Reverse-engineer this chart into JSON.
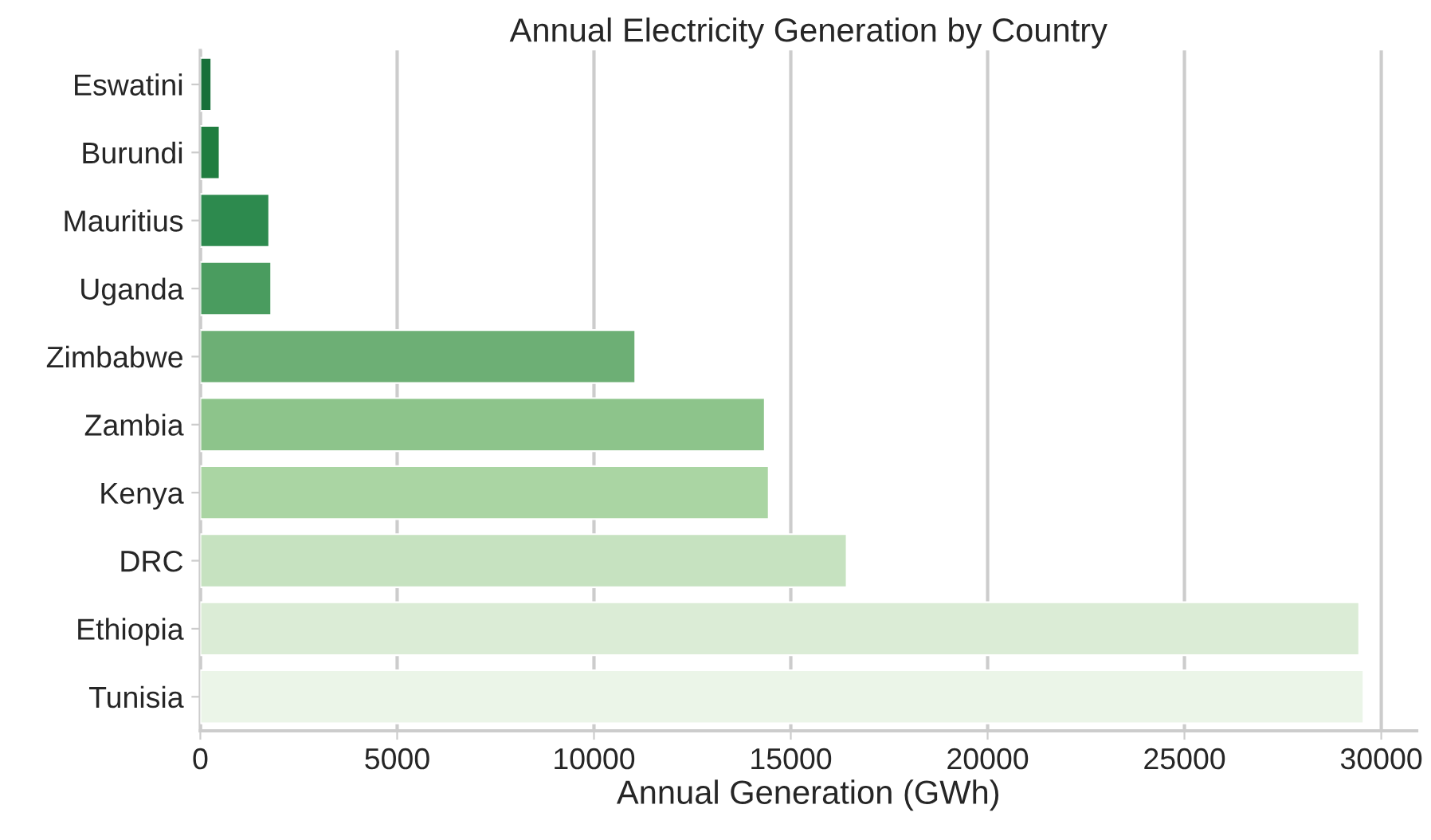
{
  "chart_data": {
    "type": "bar",
    "orientation": "horizontal",
    "title": "Annual Electricity Generation by Country",
    "xlabel": "Annual Generation (GWh)",
    "categories": [
      "Eswatini",
      "Burundi",
      "Mauritius",
      "Uganda",
      "Zimbabwe",
      "Zambia",
      "Kenya",
      "DRC",
      "Ethiopia",
      "Tunisia"
    ],
    "values": [
      280,
      490,
      1750,
      1800,
      11050,
      14340,
      14440,
      16420,
      29440,
      29550
    ],
    "colors": [
      "#17703a",
      "#1f7d3f",
      "#2d8a4e",
      "#4a9c5f",
      "#6daf75",
      "#8dc48b",
      "#aad5a3",
      "#c6e2c0",
      "#dbecd6",
      "#ebf5e8"
    ],
    "xlim": [
      0,
      30900
    ],
    "xticks": [
      0,
      5000,
      10000,
      15000,
      20000,
      25000,
      30000
    ],
    "grid": "x"
  }
}
